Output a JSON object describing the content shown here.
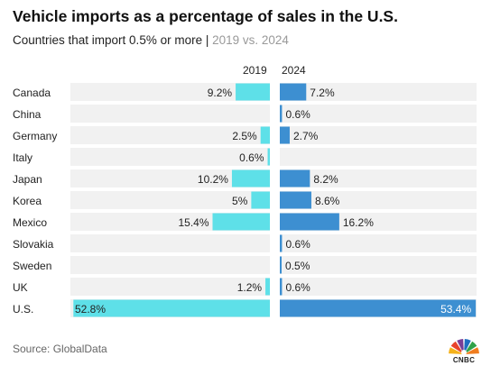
{
  "chart_data": {
    "type": "bar",
    "title": "Vehicle imports as a percentage of sales in the U.S.",
    "subtitle": "Countries that import 0.5% or more",
    "subtitle_comparison": "2019 vs. 2024",
    "layout": "back-to-back horizontal bars",
    "categories": [
      "Canada",
      "China",
      "Germany",
      "Italy",
      "Japan",
      "Korea",
      "Mexico",
      "Slovakia",
      "Sweden",
      "UK",
      "U.S."
    ],
    "series": [
      {
        "name": "2019",
        "color": "#5ee0e8",
        "values": [
          9.2,
          null,
          2.5,
          0.6,
          10.2,
          5,
          15.4,
          null,
          null,
          1.2,
          52.8
        ],
        "labels": [
          "9.2%",
          "",
          "2.5%",
          "0.6%",
          "10.2%",
          "5%",
          "15.4%",
          "",
          "",
          "1.2%",
          "52.8%"
        ]
      },
      {
        "name": "2024",
        "color": "#3d8fd1",
        "values": [
          7.2,
          0.6,
          2.7,
          null,
          8.2,
          8.6,
          16.2,
          0.6,
          0.5,
          0.6,
          53.4
        ],
        "labels": [
          "7.2%",
          "0.6%",
          "2.7%",
          "",
          "8.2%",
          "8.6%",
          "16.2%",
          "0.6%",
          "0.5%",
          "0.6%",
          "53.4%"
        ]
      }
    ],
    "row_background": "#f1f1f1",
    "source": "Source: GlobalData"
  },
  "logo": {
    "name": "CNBC",
    "colors": [
      "#f5b21b",
      "#e8432c",
      "#7a3e96",
      "#1f6fc1",
      "#2fa24a",
      "#f07d1f"
    ]
  }
}
